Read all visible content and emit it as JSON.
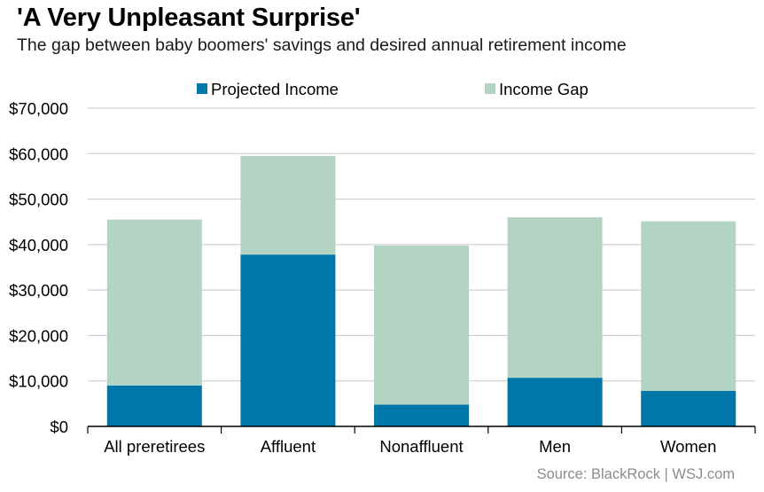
{
  "title": "'A Very Unpleasant Surprise'",
  "subtitle": "The gap between baby boomers' savings and desired annual retirement income",
  "source": "Source: BlackRock  |  WSJ.com",
  "colors": {
    "projected_income": "#0077a8",
    "income_gap": "#b3d4c3",
    "grid": "#c8c8c8",
    "axis": "#000000"
  },
  "chart_data": {
    "type": "bar",
    "stacked": true,
    "categories": [
      "All preretirees",
      "Affluent",
      "Nonaffluent",
      "Men",
      "Women"
    ],
    "series": [
      {
        "name": "Projected Income",
        "values": [
          9000,
          37800,
          4800,
          10700,
          7800
        ]
      },
      {
        "name": "Income Gap",
        "values": [
          36500,
          21700,
          35000,
          35300,
          37300
        ]
      }
    ],
    "ylim": [
      0,
      70000
    ],
    "yticks": [
      0,
      10000,
      20000,
      30000,
      40000,
      50000,
      60000,
      70000
    ],
    "ytick_labels": [
      "$0",
      "$10,000",
      "$20,000",
      "$30,000",
      "$40,000",
      "$50,000",
      "$60,000",
      "$70,000"
    ],
    "legend_position": "top",
    "grid": true
  }
}
